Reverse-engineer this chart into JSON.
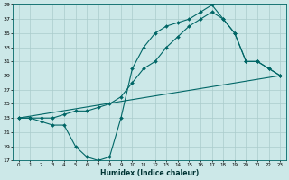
{
  "xlabel": "Humidex (Indice chaleur)",
  "ylabel": "",
  "bg_color": "#cce8e8",
  "grid_color": "#aacccc",
  "line_color": "#006666",
  "xlim": [
    -0.5,
    23.5
  ],
  "ylim": [
    17,
    39
  ],
  "xticks": [
    0,
    1,
    2,
    3,
    4,
    5,
    6,
    7,
    8,
    9,
    10,
    11,
    12,
    13,
    14,
    15,
    16,
    17,
    18,
    19,
    20,
    21,
    22,
    23
  ],
  "yticks": [
    17,
    19,
    21,
    23,
    25,
    27,
    29,
    31,
    33,
    35,
    37,
    39
  ],
  "line1_x": [
    0,
    1,
    2,
    3,
    4,
    5,
    6,
    7,
    8,
    9,
    10,
    11,
    12,
    13,
    14,
    15,
    16,
    17,
    18,
    19,
    20,
    21,
    22,
    23
  ],
  "line1_y": [
    23,
    23,
    22.5,
    22,
    22,
    19,
    17.5,
    17,
    17.5,
    23,
    30,
    33,
    35,
    36,
    36.5,
    37,
    38,
    39,
    37,
    35,
    31,
    31,
    30,
    29
  ],
  "line2_x": [
    0,
    1,
    2,
    3,
    4,
    5,
    6,
    7,
    8,
    9,
    10,
    11,
    12,
    13,
    14,
    15,
    16,
    17,
    18,
    19,
    20,
    21,
    22,
    23
  ],
  "line2_y": [
    23,
    23,
    23,
    23,
    23.5,
    24,
    24,
    24.5,
    25,
    26,
    28,
    30,
    31,
    33,
    34.5,
    36,
    37,
    38,
    37,
    35,
    31,
    31,
    30,
    29
  ],
  "line3_x": [
    0,
    23
  ],
  "line3_y": [
    23,
    29
  ]
}
